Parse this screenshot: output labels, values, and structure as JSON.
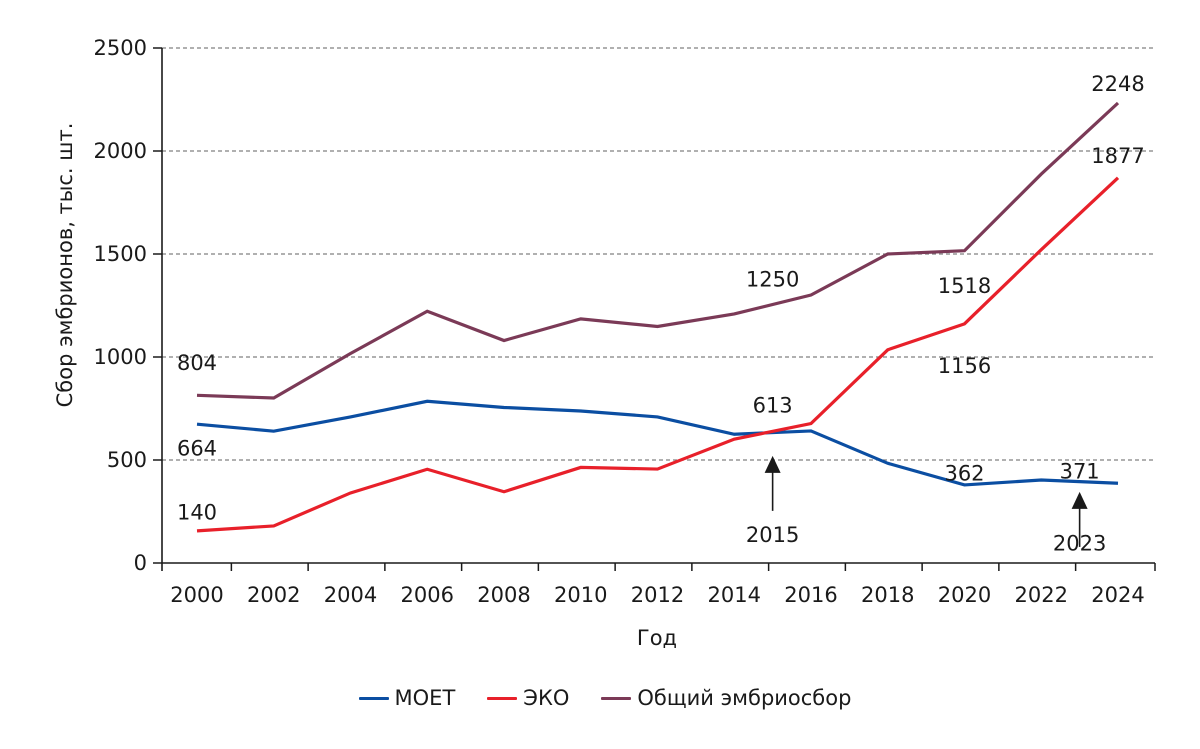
{
  "chart_data": {
    "type": "line",
    "title": "",
    "xlabel": "Год",
    "ylabel": "Сбор эмбрионов, тыс. шт.",
    "ylim": [
      0,
      2500
    ],
    "yticks": [
      0,
      500,
      1000,
      1500,
      2000,
      2500
    ],
    "grid": "horizontal dashed",
    "legend_position": "bottom-center",
    "categories": [
      "2000",
      "2002",
      "2004",
      "2006",
      "2008",
      "2010",
      "2012",
      "2014",
      "2016",
      "2018",
      "2020",
      "2022",
      "2024"
    ],
    "x": [
      2000,
      2002,
      2004,
      2006,
      2008,
      2010,
      2012,
      2014,
      2016,
      2018,
      2020,
      2022,
      2024
    ],
    "series": [
      {
        "name": "МОЕТ",
        "color": "#0b4ea2",
        "values": [
          674,
          640,
          709,
          785,
          755,
          738,
          709,
          625,
          641,
          484,
          379,
          403,
          387
        ]
      },
      {
        "name": "ЭКО",
        "color": "#e8202a",
        "values": [
          156,
          180,
          340,
          455,
          346,
          464,
          456,
          601,
          677,
          1035,
          1161,
          1521,
          1870
        ]
      },
      {
        "name": "Общий эмбриосбор",
        "color": "#7b3a57",
        "values": [
          814,
          801,
          1017,
          1222,
          1080,
          1185,
          1148,
          1209,
          1301,
          1500,
          1516,
          1888,
          2233
        ]
      }
    ],
    "annotations": [
      {
        "text": "804",
        "x": 2000,
        "y": 975
      },
      {
        "text": "664",
        "x": 2000,
        "y": 560
      },
      {
        "text": "140",
        "x": 2000,
        "y": 250
      },
      {
        "text": "1250",
        "x": 2015,
        "y": 1380
      },
      {
        "text": "613",
        "x": 2015,
        "y": 770
      },
      {
        "text": "1518",
        "x": 2020,
        "y": 1350
      },
      {
        "text": "1156",
        "x": 2020,
        "y": 960
      },
      {
        "text": "362",
        "x": 2020,
        "y": 440
      },
      {
        "text": "371",
        "x": 2023,
        "y": 450
      },
      {
        "text": "2248",
        "x": 2024,
        "y": 2330
      },
      {
        "text": "1877",
        "x": 2024,
        "y": 1980
      }
    ],
    "arrows": [
      {
        "label": "2015",
        "x": 2015,
        "tip_y": 520,
        "label_y": 140
      },
      {
        "label": "2023",
        "x": 2023,
        "tip_y": 345,
        "label_y": 100
      }
    ]
  }
}
